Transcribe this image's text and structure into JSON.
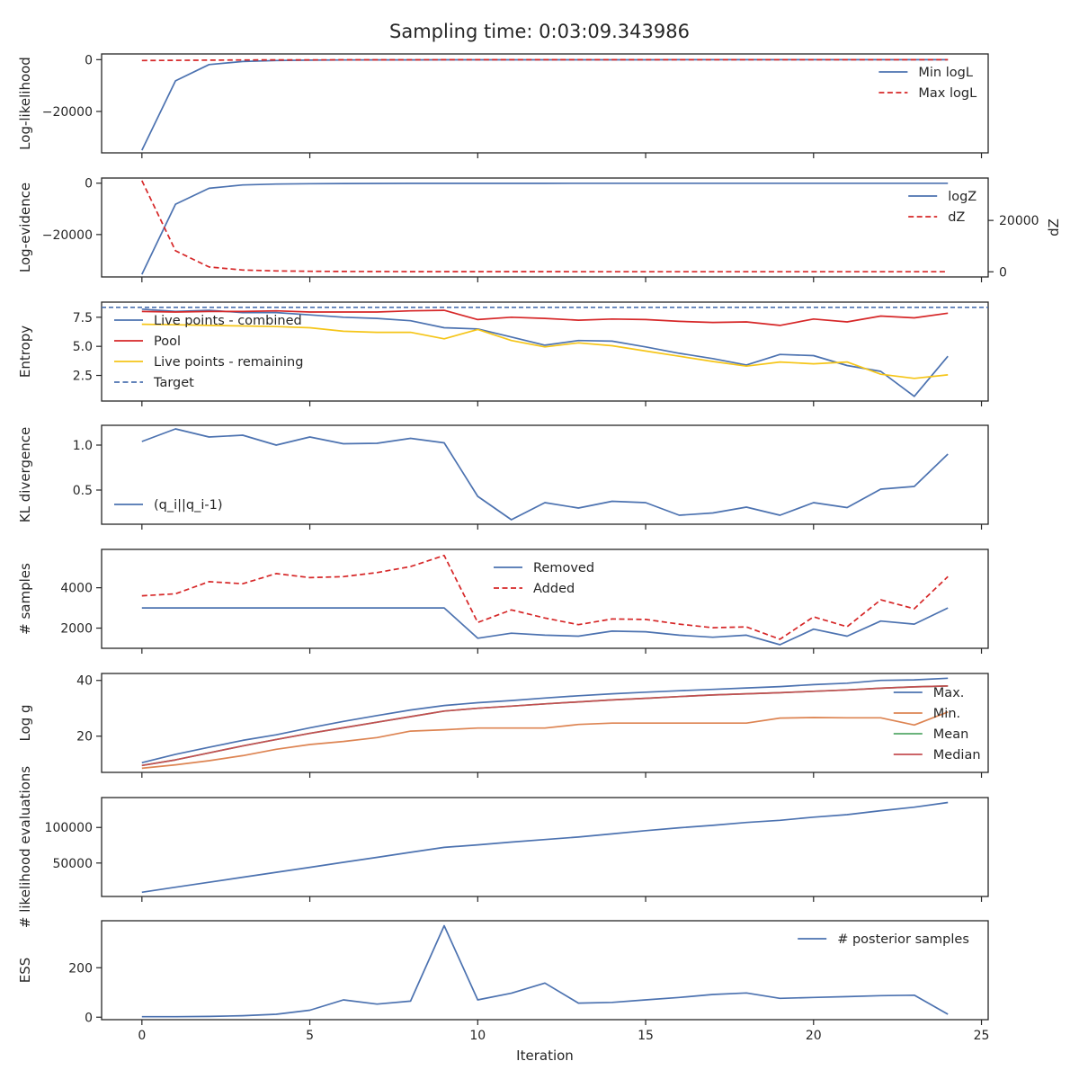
{
  "figure": {
    "title": "Sampling time: 0:03:09.343986",
    "xlabel": "Iteration"
  },
  "colors": {
    "blue": "#4c72b0",
    "red": "#d62728",
    "yellow": "#f5c518",
    "orange": "#dd8452",
    "green": "#55a868",
    "median_red": "#c44e52"
  },
  "chart_data": [
    {
      "type": "line",
      "ylabel": "Log-likelihood",
      "xlim": [
        -1.2,
        25.2
      ],
      "ylim": [
        -36000,
        2200
      ],
      "yticks": [
        0,
        -20000
      ],
      "ytick_labels": [
        "0",
        "−20000"
      ],
      "legend": "top-right",
      "series": [
        {
          "name": "Min logL",
          "color": "#4c72b0",
          "dash": false,
          "x": [
            0,
            1,
            2,
            3,
            4,
            5,
            6,
            7,
            8,
            9,
            10,
            11,
            12,
            13,
            14,
            15,
            16,
            17,
            18,
            19,
            20,
            21,
            22,
            23,
            24
          ],
          "values": [
            -35000,
            -8200,
            -1900,
            -700,
            -350,
            -200,
            -140,
            -100,
            -80,
            -70,
            -60,
            -55,
            -50,
            -45,
            -42,
            -40,
            -38,
            -36,
            -35,
            -34,
            -33,
            -32,
            -31,
            -30,
            -30
          ]
        },
        {
          "name": "Max logL",
          "color": "#d62728",
          "dash": true,
          "x": [
            0,
            1,
            2,
            3,
            4,
            5,
            6,
            7,
            8,
            9,
            10,
            11,
            12,
            13,
            14,
            15,
            16,
            17,
            18,
            19,
            20,
            21,
            22,
            23,
            24
          ],
          "values": [
            -350,
            -250,
            -180,
            -130,
            -100,
            -80,
            -60,
            -50,
            -40,
            -35,
            -30,
            -28,
            -26,
            -24,
            -22,
            -21,
            -20,
            -19,
            -18,
            -17,
            -16,
            -15,
            -15,
            -15,
            -15
          ]
        }
      ]
    },
    {
      "type": "line",
      "ylabel": "Log-evidence",
      "y2label": "dZ",
      "xlim": [
        -1.2,
        25.2
      ],
      "ylim": [
        -36500,
        2000
      ],
      "yticks": [
        0,
        -20000
      ],
      "ytick_labels": [
        "0",
        "−20000"
      ],
      "y2lim": [
        -2000,
        36500
      ],
      "y2ticks": [
        0,
        20000
      ],
      "y2tick_labels": [
        "0",
        "20000"
      ],
      "legend": "top-right",
      "series": [
        {
          "name": "logZ",
          "color": "#4c72b0",
          "dash": false,
          "x": [
            0,
            1,
            2,
            3,
            4,
            5,
            6,
            7,
            8,
            9,
            10,
            11,
            12,
            13,
            14,
            15,
            16,
            17,
            18,
            19,
            20,
            21,
            22,
            23,
            24
          ],
          "values": [
            -35500,
            -8200,
            -2000,
            -700,
            -350,
            -200,
            -140,
            -100,
            -80,
            -70,
            -60,
            -55,
            -50,
            -45,
            -42,
            -40,
            -38,
            -36,
            -35,
            -34,
            -33,
            -32,
            -31,
            -30,
            -30
          ]
        },
        {
          "name": "dZ",
          "color": "#d62728",
          "dash": true,
          "axis": "right",
          "x": [
            0,
            1,
            2,
            3,
            4,
            5,
            6,
            7,
            8,
            9,
            10,
            11,
            12,
            13,
            14,
            15,
            16,
            17,
            18,
            19,
            20,
            21,
            22,
            23,
            24
          ],
          "values": [
            35500,
            8200,
            1900,
            700,
            350,
            200,
            140,
            100,
            80,
            70,
            60,
            55,
            50,
            45,
            42,
            40,
            38,
            36,
            35,
            34,
            33,
            32,
            31,
            30,
            30
          ]
        }
      ]
    },
    {
      "type": "line",
      "ylabel": "Entropy",
      "xlim": [
        -1.2,
        25.2
      ],
      "ylim": [
        0.3,
        8.8
      ],
      "yticks": [
        2.5,
        5.0,
        7.5
      ],
      "ytick_labels": [
        "2.5",
        "5.0",
        "7.5"
      ],
      "legend": "top-left",
      "hline": {
        "name": "Target",
        "y": 8.35,
        "color": "#4c72b0"
      },
      "series": [
        {
          "name": "Live points - combined",
          "color": "#4c72b0",
          "dash": false,
          "x": [
            0,
            1,
            2,
            3,
            4,
            5,
            6,
            7,
            8,
            9,
            10,
            11,
            12,
            13,
            14,
            15,
            16,
            17,
            18,
            19,
            20,
            21,
            22,
            23,
            24
          ],
          "values": [
            8.2,
            8.0,
            8.1,
            7.9,
            7.9,
            7.7,
            7.5,
            7.4,
            7.2,
            6.6,
            6.5,
            5.8,
            5.1,
            5.5,
            5.45,
            4.95,
            4.4,
            3.95,
            3.4,
            4.3,
            4.2,
            3.35,
            2.85,
            0.7,
            4.15
          ]
        },
        {
          "name": "Pool",
          "color": "#d62728",
          "dash": false,
          "x": [
            0,
            1,
            2,
            3,
            4,
            5,
            6,
            7,
            8,
            9,
            10,
            11,
            12,
            13,
            14,
            15,
            16,
            17,
            18,
            19,
            20,
            21,
            22,
            23,
            24
          ],
          "values": [
            8.0,
            7.95,
            8.0,
            8.0,
            8.05,
            7.95,
            7.95,
            7.95,
            8.05,
            8.1,
            7.3,
            7.5,
            7.4,
            7.25,
            7.35,
            7.3,
            7.15,
            7.05,
            7.1,
            6.8,
            7.35,
            7.1,
            7.6,
            7.45,
            7.85
          ]
        },
        {
          "name": "Live points - remaining",
          "color": "#f5c518",
          "dash": false,
          "x": [
            0,
            1,
            2,
            3,
            4,
            5,
            6,
            7,
            8,
            9,
            10,
            11,
            12,
            13,
            14,
            15,
            16,
            17,
            18,
            19,
            20,
            21,
            22,
            23,
            24
          ],
          "values": [
            6.9,
            6.85,
            6.8,
            6.75,
            6.7,
            6.6,
            6.3,
            6.2,
            6.2,
            5.65,
            6.45,
            5.5,
            4.95,
            5.3,
            5.05,
            4.6,
            4.15,
            3.7,
            3.3,
            3.65,
            3.5,
            3.65,
            2.6,
            2.25,
            2.55
          ]
        }
      ]
    },
    {
      "type": "line",
      "ylabel": "KL divergence",
      "xlim": [
        -1.2,
        25.2
      ],
      "ylim": [
        0.12,
        1.22
      ],
      "yticks": [
        0.5,
        1.0
      ],
      "ytick_labels": [
        "0.5",
        "1.0"
      ],
      "legend": "bottom-left",
      "series": [
        {
          "name": "(q_i||q_i-1)",
          "color": "#4c72b0",
          "dash": false,
          "x": [
            0,
            1,
            2,
            3,
            4,
            5,
            6,
            7,
            8,
            9,
            10,
            11,
            12,
            13,
            14,
            15,
            16,
            17,
            18,
            19,
            20,
            21,
            22,
            23,
            24
          ],
          "values": [
            1.04,
            1.18,
            1.09,
            1.11,
            1.0,
            1.09,
            1.015,
            1.02,
            1.075,
            1.025,
            0.43,
            0.17,
            0.36,
            0.3,
            0.375,
            0.36,
            0.22,
            0.245,
            0.31,
            0.22,
            0.36,
            0.305,
            0.51,
            0.54,
            0.9
          ]
        }
      ]
    },
    {
      "type": "line",
      "ylabel": "# samples",
      "xlim": [
        -1.2,
        25.2
      ],
      "ylim": [
        1000,
        5900
      ],
      "yticks": [
        2000,
        4000
      ],
      "ytick_labels": [
        "2000",
        "4000"
      ],
      "legend": "top-center",
      "series": [
        {
          "name": "Removed",
          "color": "#4c72b0",
          "dash": false,
          "x": [
            0,
            1,
            2,
            3,
            4,
            5,
            6,
            7,
            8,
            9,
            10,
            11,
            12,
            13,
            14,
            15,
            16,
            17,
            18,
            19,
            20,
            21,
            22,
            23,
            24
          ],
          "values": [
            3000,
            3000,
            3000,
            3000,
            3000,
            3000,
            3000,
            3000,
            3000,
            3000,
            1500,
            1750,
            1650,
            1600,
            1850,
            1820,
            1650,
            1550,
            1650,
            1180,
            1950,
            1600,
            2350,
            2200,
            3000
          ]
        },
        {
          "name": "Added",
          "color": "#d62728",
          "dash": true,
          "x": [
            0,
            1,
            2,
            3,
            4,
            5,
            6,
            7,
            8,
            9,
            10,
            11,
            12,
            13,
            14,
            15,
            16,
            17,
            18,
            19,
            20,
            21,
            22,
            23,
            24
          ],
          "values": [
            3600,
            3700,
            4300,
            4200,
            4700,
            4500,
            4550,
            4750,
            5050,
            5600,
            2280,
            2900,
            2500,
            2170,
            2450,
            2430,
            2200,
            2020,
            2060,
            1450,
            2560,
            2070,
            3400,
            2960,
            4550
          ]
        }
      ]
    },
    {
      "type": "line",
      "ylabel": "Log g",
      "xlim": [
        -1.2,
        25.2
      ],
      "ylim": [
        7,
        42.5
      ],
      "yticks": [
        20,
        40
      ],
      "ytick_labels": [
        "20",
        "40"
      ],
      "legend": "bottom-right",
      "series": [
        {
          "name": "Max.",
          "color": "#4c72b0",
          "dash": false,
          "x": [
            0,
            1,
            2,
            3,
            4,
            5,
            6,
            7,
            8,
            9,
            10,
            11,
            12,
            13,
            14,
            15,
            16,
            17,
            18,
            19,
            20,
            21,
            22,
            23,
            24
          ],
          "values": [
            10.5,
            13.5,
            16,
            18.5,
            20.5,
            23,
            25.3,
            27.4,
            29.4,
            31,
            32,
            32.8,
            33.7,
            34.5,
            35.2,
            35.8,
            36.3,
            36.8,
            37.3,
            37.8,
            38.5,
            39,
            40,
            40.2,
            40.8
          ]
        },
        {
          "name": "Min.",
          "color": "#dd8452",
          "dash": false,
          "x": [
            0,
            1,
            2,
            3,
            4,
            5,
            6,
            7,
            8,
            9,
            10,
            11,
            12,
            13,
            14,
            15,
            16,
            17,
            18,
            19,
            20,
            21,
            22,
            23,
            24
          ],
          "values": [
            8.5,
            9.7,
            11.2,
            13,
            15.3,
            17,
            18.1,
            19.5,
            21.8,
            22.3,
            22.9,
            22.9,
            22.9,
            24.2,
            24.7,
            24.7,
            24.7,
            24.7,
            24.7,
            26.5,
            26.7,
            26.6,
            26.6,
            24,
            28.7
          ]
        },
        {
          "name": "Mean",
          "color": "#55a868",
          "dash": false,
          "x": [
            0,
            1,
            2,
            3,
            4,
            5,
            6,
            7,
            8,
            9,
            10,
            11,
            12,
            13,
            14,
            15,
            16,
            17,
            18,
            19,
            20,
            21,
            22,
            23,
            24
          ],
          "values": [
            9.5,
            11.5,
            14,
            16.5,
            18.8,
            21,
            23,
            25,
            27,
            29,
            30,
            30.8,
            31.6,
            32.3,
            33,
            33.6,
            34.2,
            34.8,
            35.2,
            35.6,
            36.1,
            36.6,
            37.2,
            37.7,
            38
          ]
        },
        {
          "name": "Median",
          "color": "#c44e52",
          "dash": false,
          "x": [
            0,
            1,
            2,
            3,
            4,
            5,
            6,
            7,
            8,
            9,
            10,
            11,
            12,
            13,
            14,
            15,
            16,
            17,
            18,
            19,
            20,
            21,
            22,
            23,
            24
          ],
          "values": [
            9.5,
            11.5,
            14,
            16.5,
            18.8,
            21,
            23,
            25,
            27,
            29,
            30,
            30.8,
            31.6,
            32.3,
            33,
            33.6,
            34.2,
            34.8,
            35.2,
            35.6,
            36.1,
            36.6,
            37.2,
            37.7,
            38
          ]
        }
      ]
    },
    {
      "type": "line",
      "ylabel": "# likelihood evaluations",
      "xlim": [
        -1.2,
        25.2
      ],
      "ylim": [
        3000,
        142000
      ],
      "yticks": [
        50000,
        100000
      ],
      "ytick_labels": [
        "50000",
        "100000"
      ],
      "legend": "none",
      "series": [
        {
          "name": "",
          "color": "#4c72b0",
          "dash": false,
          "x": [
            0,
            1,
            2,
            3,
            4,
            5,
            6,
            7,
            8,
            9,
            10,
            11,
            12,
            13,
            14,
            15,
            16,
            17,
            18,
            19,
            20,
            21,
            22,
            23,
            24
          ],
          "values": [
            9000,
            16000,
            23000,
            30000,
            37000,
            44000,
            51000,
            58000,
            65000,
            72000,
            75500,
            79500,
            83000,
            86500,
            91000,
            95500,
            99500,
            103000,
            107000,
            110000,
            114500,
            118000,
            123500,
            128500,
            135000
          ]
        }
      ]
    },
    {
      "type": "line",
      "ylabel": "ESS",
      "xlim": [
        -1.2,
        25.2
      ],
      "ylim": [
        -10,
        390
      ],
      "yticks": [
        0,
        200
      ],
      "ytick_labels": [
        "0",
        "200"
      ],
      "legend": "top-right",
      "series": [
        {
          "name": "# posterior samples",
          "color": "#4c72b0",
          "dash": false,
          "x": [
            0,
            1,
            2,
            3,
            4,
            5,
            6,
            7,
            8,
            9,
            10,
            11,
            12,
            13,
            14,
            15,
            16,
            17,
            18,
            19,
            20,
            21,
            22,
            23,
            24
          ],
          "values": [
            2,
            2,
            3,
            6,
            12,
            28,
            70,
            53,
            65,
            370,
            70,
            97,
            138,
            57,
            60,
            70,
            80,
            92,
            98,
            76,
            80,
            83,
            87,
            89,
            12
          ]
        }
      ]
    }
  ],
  "x_axis": {
    "ticks": [
      0,
      5,
      10,
      15,
      20,
      25
    ],
    "tick_labels": [
      "0",
      "5",
      "10",
      "15",
      "20",
      "25"
    ]
  }
}
